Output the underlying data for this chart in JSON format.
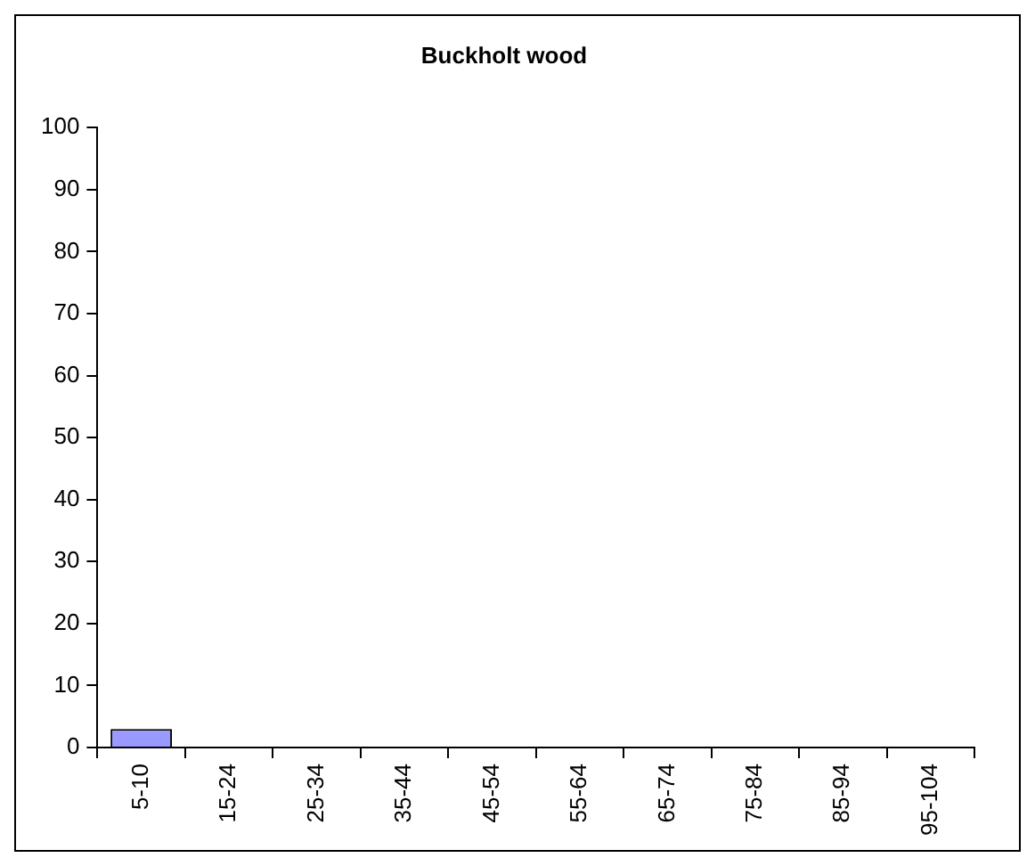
{
  "chart_data": {
    "type": "bar",
    "title": "Buckholt wood",
    "categories": [
      "5-10",
      "15-24",
      "25-34",
      "35-44",
      "45-54",
      "55-64",
      "65-74",
      "75-84",
      "85-94",
      "95-104"
    ],
    "values": [
      3,
      0,
      0,
      0,
      0,
      0,
      0,
      0,
      0,
      0
    ],
    "color": "#9999ff",
    "ylim": [
      0,
      100
    ],
    "yticks": [
      0,
      10,
      20,
      30,
      40,
      50,
      60,
      70,
      80,
      90,
      100
    ],
    "grid": false,
    "legend": false
  }
}
